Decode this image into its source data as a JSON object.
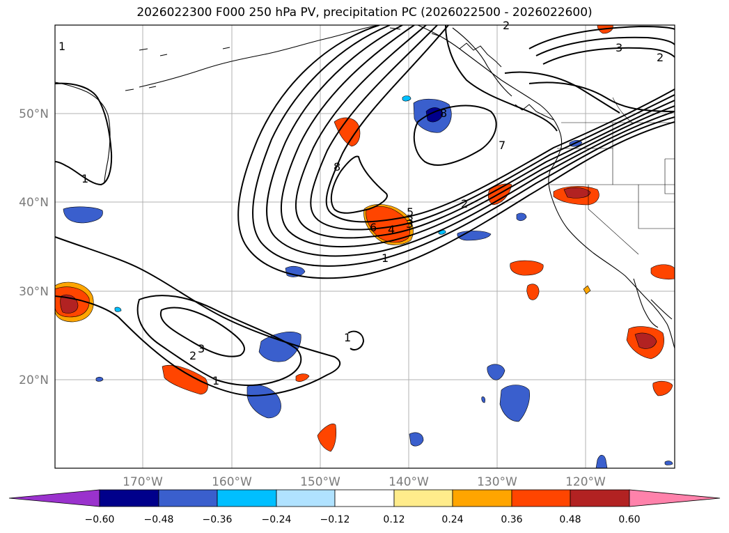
{
  "title": "2026022300 F000 250 hPa PV, precipitation PC (2026022500 - 2026022600)",
  "map": {
    "lat_labels": [
      "50°N",
      "40°N",
      "30°N",
      "20°N"
    ],
    "lon_labels": [
      "170°W",
      "160°W",
      "150°W",
      "140°W",
      "130°W",
      "120°W"
    ],
    "colors": {
      "grid": "#b0b0b0",
      "contour": "#000000",
      "border": "#000000",
      "label": "#7a7a7a"
    }
  },
  "pv_contour_labels": [
    "1",
    "1",
    "2",
    "3",
    "4",
    "5",
    "6",
    "7",
    "8",
    "8",
    "3",
    "2",
    "1",
    "2",
    "3",
    "1",
    "1",
    "3",
    "2"
  ],
  "colorbar": {
    "ticks": [
      "−0.60",
      "−0.48",
      "−0.36",
      "−0.24",
      "−0.12",
      "0.12",
      "0.24",
      "0.36",
      "0.48",
      "0.60"
    ],
    "colors": [
      "#9a32cd",
      "#00008b",
      "#3a5fcd",
      "#00bfff",
      "#b0e2ff",
      "#ffffff",
      "#ffec8b",
      "#ffa500",
      "#ff4500",
      "#b22222",
      "#ff82ab"
    ]
  }
}
